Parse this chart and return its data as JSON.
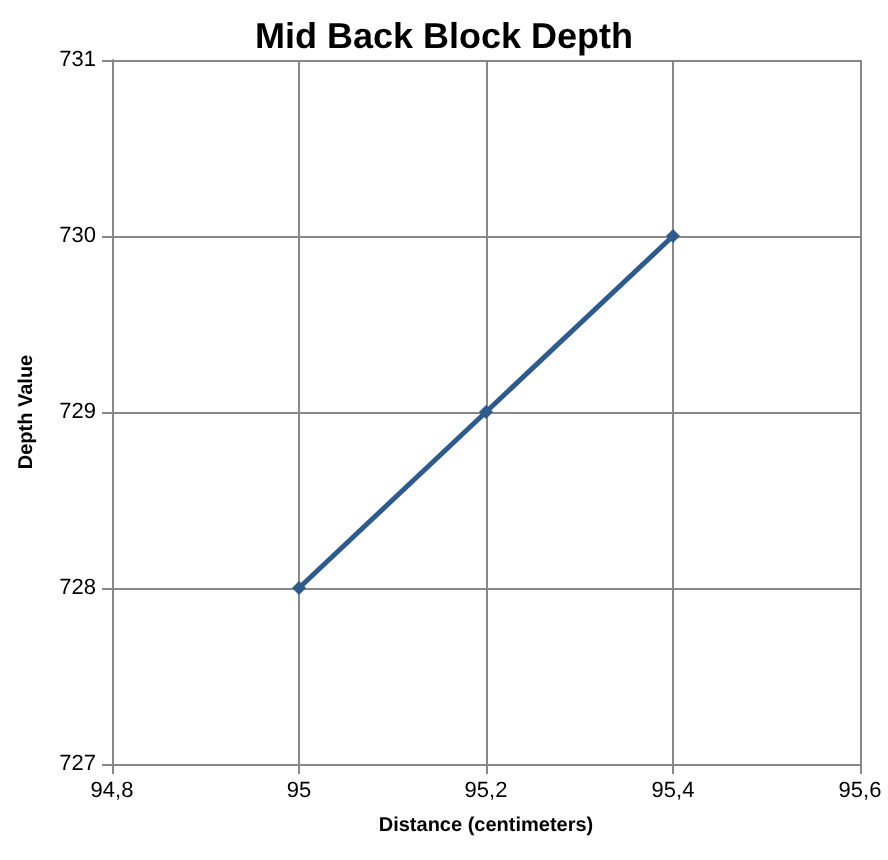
{
  "chart_data": {
    "type": "line",
    "title": "Mid Back Block Depth",
    "xlabel": "Distance (centimeters)",
    "ylabel": "Depth Value",
    "x": [
      95,
      95.2,
      95.4
    ],
    "series": [
      {
        "color": "#2f5b8c",
        "values": [
          728,
          729,
          730
        ]
      }
    ],
    "xlim": [
      94.8,
      95.6
    ],
    "xticks": [
      {
        "value": 94.8,
        "label": "94,8"
      },
      95,
      {
        "value": 95.2,
        "label": "95,2"
      },
      {
        "value": 95.4,
        "label": "95,4"
      },
      {
        "value": 95.6,
        "label": "95,6"
      }
    ],
    "ylim": [
      727,
      731
    ],
    "yticks": [
      727,
      728,
      729,
      730,
      731
    ],
    "grid": true,
    "marker": "diamond",
    "line_style": "solid"
  }
}
